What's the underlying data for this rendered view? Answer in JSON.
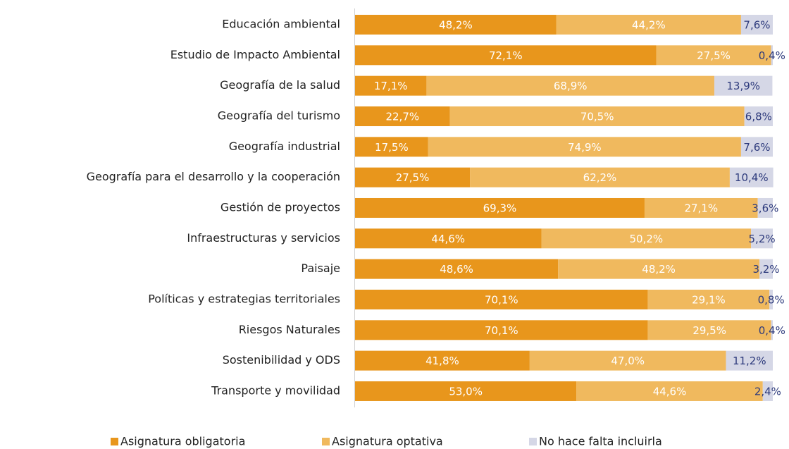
{
  "chart_data": {
    "type": "stacked_barh",
    "categories": [
      "Educación ambiental",
      "Estudio de Impacto Ambiental",
      "Geografía de la salud",
      "Geografía del turismo",
      "Geografía industrial",
      "Geografía para el desarrollo y la cooperación",
      "Gestión de proyectos",
      "Infraestructuras y servicios",
      "Paisaje",
      "Políticas y estrategias territoriales",
      "Riesgos Naturales",
      "Sostenibilidad y ODS",
      "Transporte y movilidad"
    ],
    "series": [
      {
        "name": "Asignatura obligatoria",
        "color": "#e8961c",
        "values": [
          48.2,
          72.1,
          17.1,
          22.7,
          17.5,
          27.5,
          69.3,
          44.6,
          48.6,
          70.1,
          70.1,
          41.8,
          53.0
        ],
        "value_labels": [
          "48,2%",
          "72,1%",
          "17,1%",
          "22,7%",
          "17,5%",
          "27,5%",
          "69,3%",
          "44,6%",
          "48,6%",
          "70,1%",
          "70,1%",
          "41,8%",
          "53,0%"
        ]
      },
      {
        "name": "Asignatura optativa",
        "color": "#f0b95e",
        "values": [
          44.2,
          27.5,
          68.9,
          70.5,
          74.9,
          62.2,
          27.1,
          50.2,
          48.2,
          29.1,
          29.5,
          47.0,
          44.6
        ],
        "value_labels": [
          "44,2%",
          "27,5%",
          "68,9%",
          "70,5%",
          "74,9%",
          "62,2%",
          "27,1%",
          "50,2%",
          "48,2%",
          "29,1%",
          "29,5%",
          "47,0%",
          "44,6%"
        ]
      },
      {
        "name": "No hace falta incluirla",
        "color": "#d5d7e6",
        "values": [
          7.6,
          0.4,
          13.9,
          6.8,
          7.6,
          10.4,
          3.6,
          5.2,
          3.2,
          0.8,
          0.4,
          11.2,
          2.4
        ],
        "value_labels": [
          "7,6%",
          "0,4%",
          "13,9%",
          "6,8%",
          "7,6%",
          "10,4%",
          "3,6%",
          "5,2%",
          "3,2%",
          "0,8%",
          "0,4%",
          "11,2%",
          "2,4%"
        ]
      }
    ],
    "xlim": [
      0,
      100
    ],
    "legend": "bottom"
  }
}
